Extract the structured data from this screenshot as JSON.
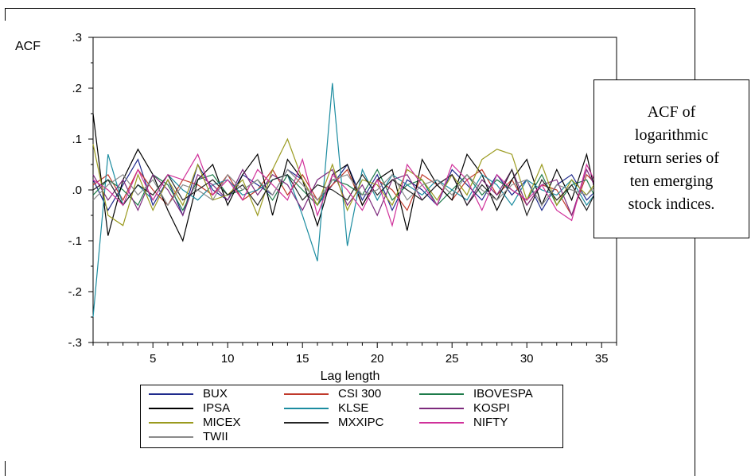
{
  "chart_data": {
    "type": "line",
    "ylabel": "ACF",
    "xlabel": "Lag length",
    "xlim": [
      1,
      36
    ],
    "ylim": [
      -0.3,
      0.3
    ],
    "x_ticks": [
      5,
      10,
      15,
      20,
      25,
      30,
      35
    ],
    "y_ticks": [
      0.3,
      0.2,
      0.1,
      0.0,
      -0.1,
      -0.2,
      -0.3
    ],
    "x_tick_labels": [
      "5",
      "10",
      "15",
      "20",
      "25",
      "30",
      "35"
    ],
    "y_tick_labels": [
      ".3",
      ".2",
      ".1",
      ".0",
      "-.1",
      "-.2",
      "-.3"
    ],
    "grid": false,
    "legend_position": "bottom",
    "x": [
      1,
      2,
      3,
      4,
      5,
      6,
      7,
      8,
      9,
      10,
      11,
      12,
      13,
      14,
      15,
      16,
      17,
      18,
      19,
      20,
      21,
      22,
      23,
      24,
      25,
      26,
      27,
      28,
      29,
      30,
      31,
      32,
      33,
      34,
      35
    ],
    "series": [
      {
        "name": "BUX",
        "color": "#1f2a8c",
        "values": [
          0.02,
          -0.04,
          0.01,
          0.06,
          -0.03,
          0.02,
          -0.05,
          0.05,
          0.0,
          -0.02,
          0.03,
          0.01,
          -0.01,
          0.04,
          0.02,
          -0.03,
          0.01,
          0.05,
          -0.02,
          0.03,
          -0.04,
          0.02,
          0.0,
          -0.03,
          0.04,
          0.01,
          -0.02,
          0.03,
          -0.01,
          0.02,
          -0.04,
          0.01,
          0.03,
          -0.02,
          0.01
        ]
      },
      {
        "name": "CSI 300",
        "color": "#c0392b",
        "values": [
          0.01,
          0.03,
          -0.02,
          0.04,
          0.0,
          -0.03,
          0.02,
          0.01,
          -0.01,
          0.03,
          -0.02,
          0.0,
          0.04,
          -0.01,
          0.03,
          -0.02,
          0.01,
          0.04,
          -0.03,
          0.02,
          0.0,
          -0.04,
          0.03,
          0.01,
          -0.02,
          0.02,
          0.04,
          -0.01,
          0.02,
          -0.03,
          0.01,
          0.0,
          -0.05,
          0.03,
          0.0
        ]
      },
      {
        "name": "IBOVESPA",
        "color": "#1e7b4a",
        "values": [
          -0.01,
          0.02,
          0.0,
          -0.03,
          0.03,
          0.01,
          -0.04,
          0.02,
          0.03,
          -0.01,
          0.0,
          0.02,
          -0.02,
          0.03,
          0.0,
          -0.03,
          0.02,
          0.01,
          -0.01,
          0.04,
          -0.02,
          0.01,
          0.02,
          -0.03,
          0.0,
          0.03,
          -0.01,
          0.02,
          0.0,
          -0.02,
          0.03,
          -0.03,
          0.01,
          0.02,
          -0.04
        ]
      },
      {
        "name": "IPSA",
        "color": "#000000",
        "values": [
          0.15,
          -0.09,
          0.02,
          0.08,
          0.03,
          -0.04,
          -0.1,
          0.02,
          0.05,
          -0.03,
          0.03,
          0.07,
          -0.05,
          0.06,
          0.02,
          -0.07,
          0.03,
          0.05,
          -0.03,
          0.02,
          0.04,
          -0.08,
          0.06,
          0.01,
          -0.02,
          0.07,
          0.03,
          -0.04,
          0.02,
          0.06,
          -0.03,
          0.04,
          -0.02,
          0.07,
          -0.06
        ]
      },
      {
        "name": "KLSE",
        "color": "#1c8ca0",
        "values": [
          -0.25,
          0.07,
          -0.03,
          0.01,
          -0.02,
          0.03,
          0.0,
          -0.02,
          0.01,
          0.02,
          -0.01,
          0.0,
          0.02,
          0.03,
          -0.05,
          -0.14,
          0.21,
          -0.11,
          0.04,
          -0.02,
          0.03,
          0.01,
          -0.01,
          0.02,
          0.0,
          -0.02,
          0.03,
          0.01,
          -0.03,
          0.02,
          0.0,
          -0.01,
          0.02,
          -0.03,
          0.01
        ]
      },
      {
        "name": "KOSPI",
        "color": "#7d2a7d",
        "values": [
          0.03,
          -0.02,
          0.02,
          -0.04,
          0.03,
          0.0,
          -0.05,
          0.03,
          0.01,
          -0.02,
          0.04,
          -0.01,
          0.03,
          0.01,
          -0.04,
          0.02,
          0.04,
          -0.03,
          0.01,
          -0.05,
          0.02,
          0.03,
          -0.02,
          0.01,
          0.03,
          -0.03,
          0.02,
          -0.01,
          0.04,
          -0.03,
          0.01,
          0.02,
          -0.05,
          0.04,
          -0.02
        ]
      },
      {
        "name": "MICEX",
        "color": "#9a9a1e",
        "values": [
          0.09,
          -0.05,
          -0.07,
          0.03,
          -0.04,
          0.02,
          -0.03,
          0.05,
          -0.02,
          -0.01,
          0.02,
          -0.05,
          0.04,
          0.1,
          0.02,
          -0.03,
          0.05,
          -0.04,
          0.02,
          0.01,
          -0.03,
          0.04,
          0.02,
          -0.02,
          0.03,
          -0.01,
          0.06,
          0.08,
          0.07,
          -0.02,
          0.05,
          -0.03,
          0.02,
          -0.01,
          0.03
        ]
      },
      {
        "name": "MXXIPC",
        "color": "#252525",
        "values": [
          0.0,
          0.02,
          -0.03,
          0.01,
          -0.01,
          0.03,
          -0.02,
          0.0,
          0.02,
          -0.01,
          0.01,
          -0.03,
          0.02,
          0.03,
          -0.02,
          0.01,
          0.0,
          -0.02,
          0.03,
          -0.01,
          0.02,
          0.0,
          -0.02,
          0.01,
          0.03,
          -0.03,
          0.01,
          -0.02,
          0.04,
          -0.05,
          0.02,
          -0.02,
          0.01,
          -0.04,
          0.02
        ]
      },
      {
        "name": "NIFTY",
        "color": "#d0309a",
        "values": [
          0.02,
          0.0,
          -0.03,
          0.04,
          -0.02,
          0.03,
          0.02,
          0.07,
          -0.01,
          0.02,
          -0.02,
          0.04,
          0.01,
          -0.02,
          0.06,
          -0.05,
          0.03,
          0.0,
          -0.04,
          0.02,
          -0.07,
          0.05,
          0.01,
          -0.03,
          0.05,
          0.02,
          -0.04,
          0.03,
          0.0,
          -0.02,
          0.01,
          -0.04,
          -0.06,
          0.05,
          -0.01
        ]
      },
      {
        "name": "TWII",
        "color": "#8a8a8a",
        "values": [
          -0.02,
          0.01,
          0.03,
          -0.01,
          0.02,
          -0.03,
          0.01,
          0.0,
          -0.02,
          0.03,
          0.0,
          0.02,
          -0.01,
          0.04,
          0.01,
          -0.02,
          0.02,
          0.03,
          -0.01,
          0.0,
          0.03,
          -0.02,
          0.01,
          0.02,
          -0.01,
          0.03,
          0.0,
          -0.02,
          0.01,
          0.02,
          -0.03,
          0.01,
          0.0,
          -0.01,
          0.02
        ]
      }
    ]
  },
  "note": {
    "lines": [
      "ACF of",
      "logarithmic",
      "return series of",
      "ten emerging",
      "stock indices."
    ]
  }
}
